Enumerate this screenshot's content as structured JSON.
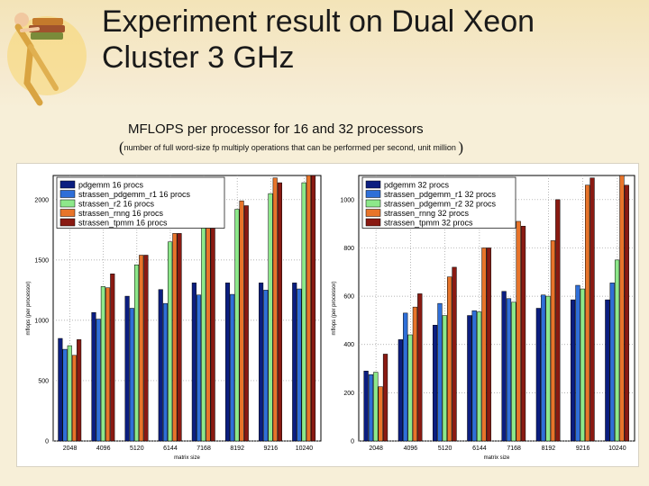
{
  "slide": {
    "title": "Experiment result on Dual Xeon Cluster 3 GHz",
    "subtitle": "MFLOPS per processor for 16 and 32 processors",
    "note": "number of full word-size fp multiply operations that can be performed per second, unit million"
  },
  "colors": {
    "pdgemm": "#0b1e80",
    "strassen_pdgemm_r1": "#2f6fd8",
    "strassen_r2": "#8de88a",
    "strassen_rnng": "#e8742a",
    "strassen_tpmm": "#8a1a12"
  },
  "chart_data": [
    {
      "type": "bar",
      "title": "",
      "xlabel": "matrix size",
      "ylabel": "mflops (per processor)",
      "ylim": [
        0,
        2200
      ],
      "yticks": [
        0,
        500,
        1000,
        1500,
        2000
      ],
      "grid": true,
      "legend_position": "top-left",
      "categories": [
        "2048",
        "4096",
        "5120",
        "6144",
        "7168",
        "8192",
        "9216",
        "10240"
      ],
      "series": [
        {
          "name": "pdgemm 16 procs",
          "color_key": "pdgemm",
          "values": [
            850,
            1065,
            1200,
            1255,
            1310,
            1310,
            1310,
            1310
          ]
        },
        {
          "name": "strassen_pdgemm_r1 16 procs",
          "color_key": "strassen_pdgemm_r1",
          "values": [
            760,
            1010,
            1100,
            1140,
            1210,
            1215,
            1250,
            1260
          ]
        },
        {
          "name": "strassen_r2 16 procs",
          "color_key": "strassen_r2",
          "values": [
            790,
            1280,
            1460,
            1650,
            1830,
            1920,
            2050,
            2140
          ]
        },
        {
          "name": "strassen_rnng 16 procs",
          "color_key": "strassen_rnng",
          "values": [
            710,
            1270,
            1540,
            1720,
            1910,
            1990,
            2180,
            2220
          ]
        },
        {
          "name": "strassen_tpmm 16 procs",
          "color_key": "strassen_tpmm",
          "values": [
            840,
            1385,
            1540,
            1720,
            1900,
            1950,
            2140,
            2280
          ]
        }
      ]
    },
    {
      "type": "bar",
      "title": "",
      "xlabel": "matrix size",
      "ylabel": "mflops (per processor)",
      "ylim": [
        0,
        1100
      ],
      "yticks": [
        0,
        200,
        400,
        600,
        800,
        1000
      ],
      "grid": true,
      "legend_position": "top-left",
      "categories": [
        "2048",
        "4096",
        "5120",
        "6144",
        "7168",
        "8192",
        "9216",
        "10240"
      ],
      "series": [
        {
          "name": "pdgemm 32 procs",
          "color_key": "pdgemm",
          "values": [
            290,
            420,
            480,
            520,
            620,
            550,
            585,
            585
          ]
        },
        {
          "name": "strassen_pdgemm_r1 32 procs",
          "color_key": "strassen_pdgemm_r1",
          "values": [
            275,
            530,
            570,
            540,
            590,
            605,
            645,
            655
          ]
        },
        {
          "name": "strassen_pdgemm_r2 32 procs",
          "color_key": "strassen_r2",
          "values": [
            285,
            440,
            520,
            535,
            575,
            600,
            630,
            750
          ]
        },
        {
          "name": "strassen_rnng 32 procs",
          "color_key": "strassen_rnng",
          "values": [
            225,
            555,
            680,
            800,
            910,
            830,
            1060,
            1110
          ]
        },
        {
          "name": "strassen_tpmm 32 procs",
          "color_key": "strassen_tpmm",
          "values": [
            360,
            610,
            720,
            800,
            890,
            1000,
            1090,
            1060
          ]
        }
      ]
    }
  ]
}
